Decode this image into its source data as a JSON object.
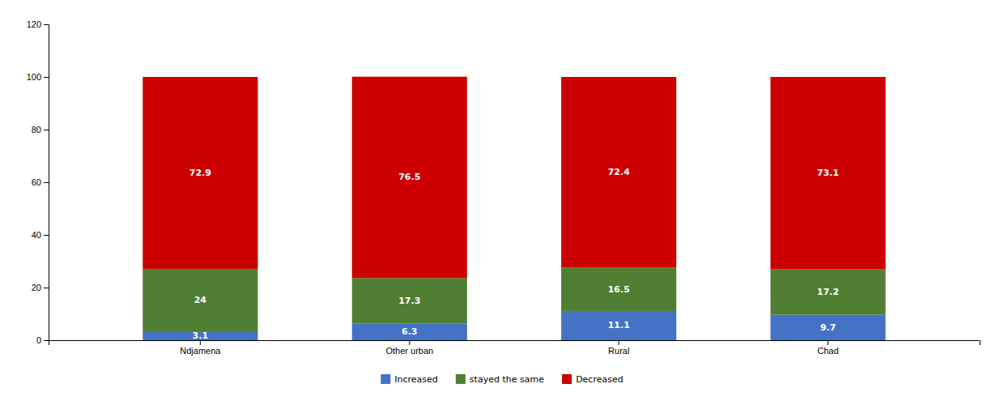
{
  "chart_data": {
    "type": "bar",
    "stacked": true,
    "data_labels": true,
    "grid": false,
    "legend": "bottom",
    "categories": [
      "Ndjamena",
      "Other urban",
      "Rural",
      "Chad"
    ],
    "series": [
      {
        "name": "Increased",
        "color": "#4472C4",
        "values": [
          3.1,
          6.3,
          11.1,
          9.7
        ]
      },
      {
        "name": "stayed the same",
        "color": "#507E32",
        "values": [
          24,
          17.3,
          16.5,
          17.2
        ]
      },
      {
        "name": "Decreased",
        "color": "#CC0000",
        "values": [
          72.9,
          76.5,
          72.4,
          73.1
        ]
      }
    ],
    "ylim": [
      0,
      120
    ],
    "yticks": [
      0,
      20,
      40,
      60,
      80,
      100,
      120
    ]
  }
}
